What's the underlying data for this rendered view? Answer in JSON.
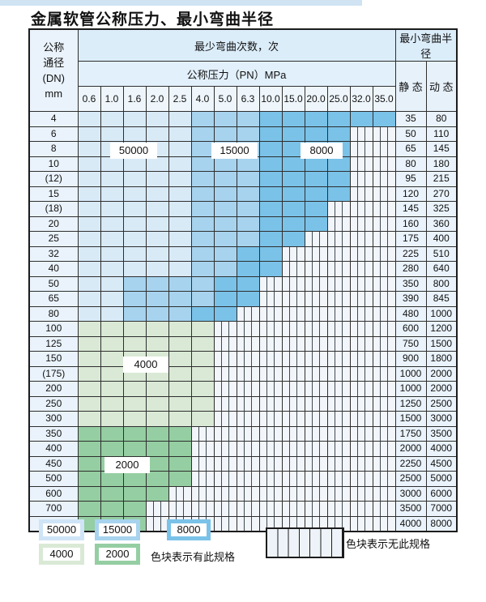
{
  "page": {
    "title": "金属软管公称压力、最小弯曲半径"
  },
  "table": {
    "header": {
      "dn_label_lines": [
        "公称",
        "通径",
        "(DN)",
        "mm"
      ],
      "bend_cycles": "最少弯曲次数，次",
      "pressure": "公称压力（PN）MPa",
      "min_bend_radius": "最小弯曲半径",
      "static": "静 态",
      "dynamic": "动 态",
      "pressures": [
        "0.6",
        "1.0",
        "1.6",
        "2.0",
        "2.5",
        "4.0",
        "5.0",
        "6.3",
        "10.0",
        "15.0",
        "20.0",
        "25.0",
        "32.0",
        "35.0"
      ]
    },
    "rows": [
      {
        "dn": "4",
        "static": "35",
        "dynamic": "80",
        "cells": [
          "50000",
          "50000",
          "50000",
          "50000",
          "50000",
          "15000",
          "15000",
          "15000",
          "8000",
          "8000",
          "8000",
          "8000",
          "8000",
          "8000"
        ]
      },
      {
        "dn": "6",
        "static": "50",
        "dynamic": "110",
        "cells": [
          "50000",
          "50000",
          "50000",
          "50000",
          "50000",
          "15000",
          "15000",
          "15000",
          "8000",
          "8000",
          "8000",
          "8000",
          "none",
          "none"
        ]
      },
      {
        "dn": "8",
        "static": "65",
        "dynamic": "145",
        "cells": [
          "50000",
          "50000",
          "50000",
          "50000",
          "50000",
          "15000",
          "15000",
          "15000",
          "8000",
          "8000",
          "8000",
          "8000",
          "none",
          "none"
        ]
      },
      {
        "dn": "10",
        "static": "80",
        "dynamic": "180",
        "cells": [
          "50000",
          "50000",
          "50000",
          "50000",
          "50000",
          "15000",
          "15000",
          "15000",
          "8000",
          "8000",
          "8000",
          "8000",
          "none",
          "none"
        ]
      },
      {
        "dn": "(12)",
        "static": "95",
        "dynamic": "215",
        "cells": [
          "50000",
          "50000",
          "50000",
          "50000",
          "50000",
          "15000",
          "15000",
          "15000",
          "8000",
          "8000",
          "8000",
          "8000",
          "none",
          "none"
        ]
      },
      {
        "dn": "15",
        "static": "120",
        "dynamic": "270",
        "cells": [
          "50000",
          "50000",
          "50000",
          "50000",
          "50000",
          "15000",
          "15000",
          "15000",
          "8000",
          "8000",
          "8000",
          "8000",
          "none",
          "none"
        ]
      },
      {
        "dn": "(18)",
        "static": "145",
        "dynamic": "325",
        "cells": [
          "50000",
          "50000",
          "50000",
          "50000",
          "50000",
          "15000",
          "15000",
          "15000",
          "8000",
          "8000",
          "8000",
          "none",
          "none",
          "none"
        ]
      },
      {
        "dn": "20",
        "static": "160",
        "dynamic": "360",
        "cells": [
          "50000",
          "50000",
          "50000",
          "50000",
          "50000",
          "15000",
          "15000",
          "15000",
          "8000",
          "8000",
          "8000",
          "none",
          "none",
          "none"
        ]
      },
      {
        "dn": "25",
        "static": "175",
        "dynamic": "400",
        "cells": [
          "50000",
          "50000",
          "50000",
          "50000",
          "50000",
          "15000",
          "15000",
          "15000",
          "8000",
          "8000",
          "none",
          "none",
          "none",
          "none"
        ]
      },
      {
        "dn": "32",
        "static": "225",
        "dynamic": "510",
        "cells": [
          "50000",
          "50000",
          "50000",
          "50000",
          "50000",
          "15000",
          "15000",
          "8000",
          "8000",
          "none",
          "none",
          "none",
          "none",
          "none"
        ]
      },
      {
        "dn": "40",
        "static": "280",
        "dynamic": "640",
        "cells": [
          "50000",
          "50000",
          "50000",
          "50000",
          "50000",
          "15000",
          "15000",
          "8000",
          "8000",
          "none",
          "none",
          "none",
          "none",
          "none"
        ]
      },
      {
        "dn": "50",
        "static": "350",
        "dynamic": "800",
        "cells": [
          "50000",
          "50000",
          "15000",
          "15000",
          "15000",
          "15000",
          "8000",
          "8000",
          "none",
          "none",
          "none",
          "none",
          "none",
          "none"
        ]
      },
      {
        "dn": "65",
        "static": "390",
        "dynamic": "845",
        "cells": [
          "50000",
          "50000",
          "15000",
          "15000",
          "15000",
          "15000",
          "8000",
          "8000",
          "none",
          "none",
          "none",
          "none",
          "none",
          "none"
        ]
      },
      {
        "dn": "80",
        "static": "480",
        "dynamic": "1000",
        "cells": [
          "50000",
          "50000",
          "15000",
          "15000",
          "15000",
          "8000",
          "8000",
          "none",
          "none",
          "none",
          "none",
          "none",
          "none",
          "none"
        ]
      },
      {
        "dn": "100",
        "static": "600",
        "dynamic": "1200",
        "cells": [
          "4000",
          "4000",
          "4000",
          "4000",
          "4000",
          "4000",
          "none",
          "none",
          "none",
          "none",
          "none",
          "none",
          "none",
          "none"
        ]
      },
      {
        "dn": "125",
        "static": "750",
        "dynamic": "1500",
        "cells": [
          "4000",
          "4000",
          "4000",
          "4000",
          "4000",
          "4000",
          "none",
          "none",
          "none",
          "none",
          "none",
          "none",
          "none",
          "none"
        ]
      },
      {
        "dn": "150",
        "static": "900",
        "dynamic": "1800",
        "cells": [
          "4000",
          "4000",
          "4000",
          "4000",
          "4000",
          "4000",
          "none",
          "none",
          "none",
          "none",
          "none",
          "none",
          "none",
          "none"
        ]
      },
      {
        "dn": "(175)",
        "static": "1000",
        "dynamic": "2000",
        "cells": [
          "4000",
          "4000",
          "4000",
          "4000",
          "4000",
          "4000",
          "none",
          "none",
          "none",
          "none",
          "none",
          "none",
          "none",
          "none"
        ]
      },
      {
        "dn": "200",
        "static": "1000",
        "dynamic": "2000",
        "cells": [
          "4000",
          "4000",
          "4000",
          "4000",
          "4000",
          "4000",
          "none",
          "none",
          "none",
          "none",
          "none",
          "none",
          "none",
          "none"
        ]
      },
      {
        "dn": "250",
        "static": "1250",
        "dynamic": "2500",
        "cells": [
          "4000",
          "4000",
          "4000",
          "4000",
          "4000",
          "4000",
          "none",
          "none",
          "none",
          "none",
          "none",
          "none",
          "none",
          "none"
        ]
      },
      {
        "dn": "300",
        "static": "1500",
        "dynamic": "3000",
        "cells": [
          "4000",
          "4000",
          "4000",
          "4000",
          "4000",
          "4000",
          "none",
          "none",
          "none",
          "none",
          "none",
          "none",
          "none",
          "none"
        ]
      },
      {
        "dn": "350",
        "static": "1750",
        "dynamic": "3500",
        "cells": [
          "2000",
          "2000",
          "2000",
          "2000",
          "2000",
          "none",
          "none",
          "none",
          "none",
          "none",
          "none",
          "none",
          "none",
          "none"
        ]
      },
      {
        "dn": "400",
        "static": "2000",
        "dynamic": "4000",
        "cells": [
          "2000",
          "2000",
          "2000",
          "2000",
          "2000",
          "none",
          "none",
          "none",
          "none",
          "none",
          "none",
          "none",
          "none",
          "none"
        ]
      },
      {
        "dn": "450",
        "static": "2250",
        "dynamic": "4500",
        "cells": [
          "2000",
          "2000",
          "2000",
          "2000",
          "2000",
          "none",
          "none",
          "none",
          "none",
          "none",
          "none",
          "none",
          "none",
          "none"
        ]
      },
      {
        "dn": "500",
        "static": "2500",
        "dynamic": "5000",
        "cells": [
          "2000",
          "2000",
          "2000",
          "2000",
          "2000",
          "none",
          "none",
          "none",
          "none",
          "none",
          "none",
          "none",
          "none",
          "none"
        ]
      },
      {
        "dn": "600",
        "static": "3000",
        "dynamic": "6000",
        "cells": [
          "2000",
          "2000",
          "2000",
          "2000",
          "none",
          "none",
          "none",
          "none",
          "none",
          "none",
          "none",
          "none",
          "none",
          "none"
        ]
      },
      {
        "dn": "700",
        "static": "3500",
        "dynamic": "7000",
        "cells": [
          "2000",
          "2000",
          "2000",
          "none",
          "none",
          "none",
          "none",
          "none",
          "none",
          "none",
          "none",
          "none",
          "none",
          "none"
        ]
      },
      {
        "dn": "800",
        "static": "4000",
        "dynamic": "8000",
        "cells": [
          "2000",
          "2000",
          "2000",
          "none",
          "none",
          "none",
          "none",
          "none",
          "none",
          "none",
          "none",
          "none",
          "none",
          "none"
        ]
      }
    ]
  },
  "overlay_labels": {
    "l50000": "50000",
    "l15000": "15000",
    "l8000": "8000",
    "l4000": "4000",
    "l2000": "2000"
  },
  "legend": {
    "items": [
      {
        "label": "50000",
        "color": "#d9eaf7"
      },
      {
        "label": "15000",
        "color": "#a7d3ee"
      },
      {
        "label": "8000",
        "color": "#7ac2e8"
      },
      {
        "label": "4000",
        "color": "#d9e9d5"
      },
      {
        "label": "2000",
        "color": "#95cea2"
      }
    ],
    "has_spec_note": "色块表示有此规格",
    "no_spec_note": "色块表示无此规格"
  },
  "colors": {
    "band_50000": "#d9eaf7",
    "band_15000": "#a7d3ee",
    "band_8000": "#7ac2e8",
    "band_4000": "#d9e9d5",
    "band_2000": "#95cea2",
    "no_spec_bg": "#f2f5fa",
    "header_bg": "#dcedfa",
    "grid_line": "#2e2e2e"
  }
}
